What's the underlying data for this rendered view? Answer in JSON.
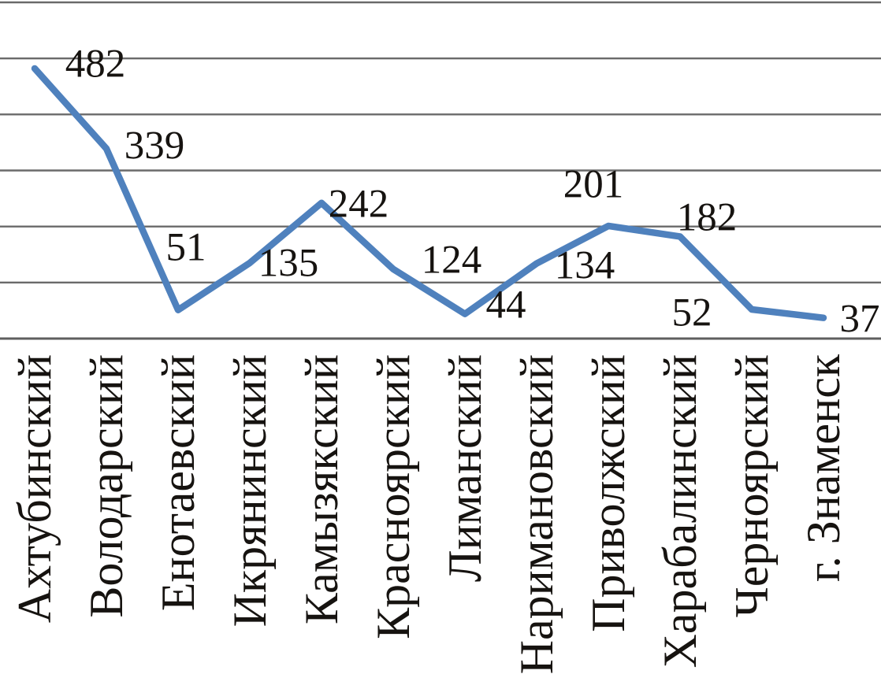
{
  "chart_data": {
    "type": "line",
    "categories": [
      "Ахтубинский",
      "Володарский",
      "Енотаевский",
      "Икрянинский",
      "Камызякский",
      "Красноярский",
      "Лиманский",
      "Наримановский",
      "Приволжский",
      "Харабалинский",
      "Черноярский",
      "г. Знаменск"
    ],
    "values": [
      482,
      339,
      51,
      135,
      242,
      124,
      44,
      134,
      201,
      182,
      52,
      37
    ],
    "title": "",
    "xlabel": "",
    "ylabel": "",
    "ylim": [
      0,
      600
    ],
    "gridline_step": 100,
    "grid": true,
    "legend": "none",
    "y_tick_labels_shown": false,
    "data_labels_shown": true,
    "line_color": "#4F81BD",
    "gridline_color": "#6A6A6A",
    "axis_color": "#5F5F5F",
    "text_color": "#161310"
  }
}
